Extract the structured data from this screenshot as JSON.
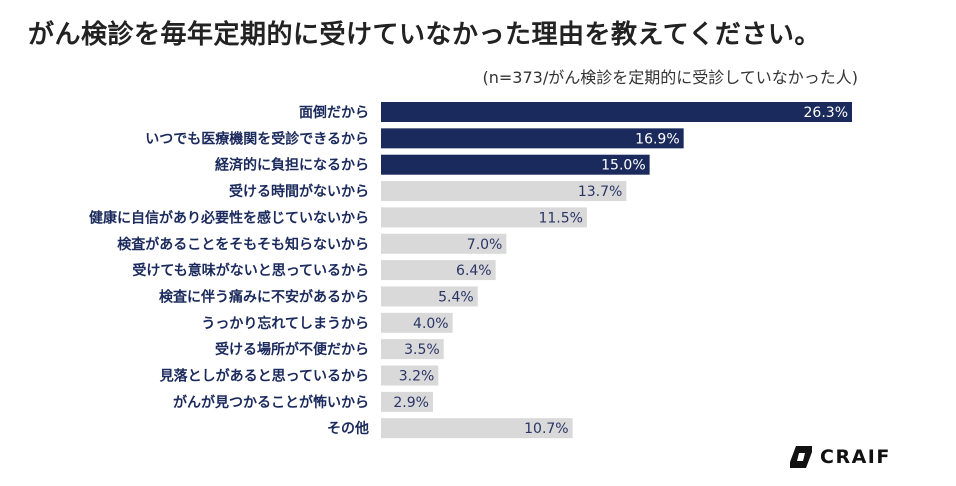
{
  "page": {
    "title": "がん検診を毎年定期的に受けていなかった理由を教えてください。",
    "subtitle": "(n=373/がん検診を定期的に受診していなかった人)",
    "logo_text": "CRAIF"
  },
  "chart_data": {
    "type": "bar",
    "orientation": "horizontal",
    "title": "がん検診を毎年定期的に受けていなかった理由を教えてください。",
    "subtitle": "(n=373/がん検診を定期的に受診していなかった人)",
    "categories": [
      "面倒だから",
      "いつでも医療機関を受診できるから",
      "経済的に負担になるから",
      "受ける時間がないから",
      "健康に自信があり必要性を感じていないから",
      "検査があることをそもそも知らないから",
      "受けても意味がないと思っているから",
      "検査に伴う痛みに不安があるから",
      "うっかり忘れてしまうから",
      "受ける場所が不便だから",
      "見落としがあると思っているから",
      "がんが見つかることが怖いから",
      "その他"
    ],
    "values": [
      26.3,
      16.9,
      15.0,
      13.7,
      11.5,
      7.0,
      6.4,
      5.4,
      4.0,
      3.5,
      3.2,
      2.9,
      10.7
    ],
    "value_labels": [
      "26.3%",
      "16.9%",
      "15.0%",
      "13.7%",
      "11.5%",
      "7.0%",
      "6.4%",
      "5.4%",
      "4.0%",
      "3.5%",
      "3.2%",
      "2.9%",
      "10.7%"
    ],
    "highlight_count": 3,
    "xlim": [
      0,
      26.3
    ],
    "unit": "%",
    "xlabel": "",
    "ylabel": "",
    "grid": false,
    "legend": "none"
  },
  "colors": {
    "highlight_bar": "#1b2a5c",
    "normal_bar": "#d9d9d9",
    "highlight_label": "#ffffff",
    "normal_label": "#2a3566",
    "category_label": "#1b2a5c"
  },
  "icons": {
    "logo": "craif-logo-icon"
  }
}
